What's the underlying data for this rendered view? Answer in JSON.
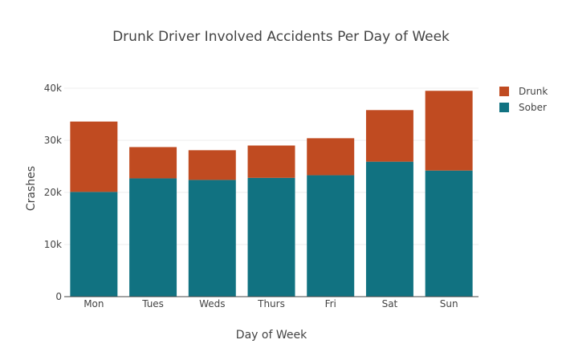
{
  "chart_data": {
    "type": "bar",
    "barmode": "stack",
    "title": "Drunk Driver Involved Accidents Per Day of Week",
    "xlabel": "Day of Week",
    "ylabel": "Crashes",
    "categories": [
      "Mon",
      "Tues",
      "Weds",
      "Thurs",
      "Fri",
      "Sat",
      "Sun"
    ],
    "ylim": [
      0,
      40000
    ],
    "yticks": [
      0,
      10000,
      20000,
      30000,
      40000
    ],
    "ytick_labels": [
      "0",
      "10k",
      "20k",
      "30k",
      "40k"
    ],
    "grid": true,
    "legend_position": "top-right",
    "series": [
      {
        "name": "Sober",
        "color": "#117281",
        "values": [
          20100,
          22700,
          22400,
          22800,
          23300,
          25900,
          24200
        ]
      },
      {
        "name": "Drunk",
        "color": "#c04b21",
        "values": [
          13500,
          6000,
          5700,
          6200,
          7100,
          9900,
          15300
        ]
      }
    ],
    "legend": [
      "Drunk",
      "Sober"
    ]
  }
}
